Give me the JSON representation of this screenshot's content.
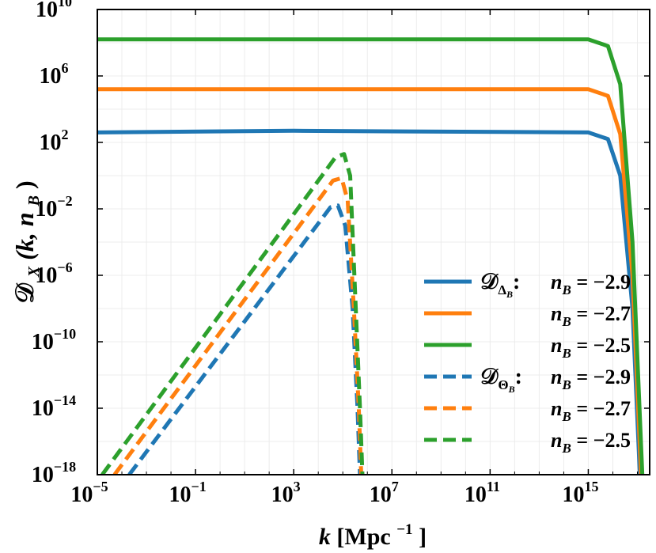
{
  "chart_data": {
    "type": "line",
    "title": "",
    "xlabel": {
      "var": "k",
      "unit": "[Mpc",
      "exp": "−1",
      "close": "]"
    },
    "ylabel": {
      "main": "𝒟",
      "sub": "X",
      "args": "(k, n",
      "argsub": "B",
      "close": ")"
    },
    "xscale": "log",
    "yscale": "log",
    "xlim_log10": [
      -5,
      17.5
    ],
    "ylim_log10": [
      -18,
      10
    ],
    "xticks": [
      {
        "log10": -5,
        "base": "10",
        "exp": "−5"
      },
      {
        "log10": -1,
        "base": "10",
        "exp": "−1"
      },
      {
        "log10": 3,
        "base": "10",
        "exp": "3"
      },
      {
        "log10": 7,
        "base": "10",
        "exp": "7"
      },
      {
        "log10": 11,
        "base": "10",
        "exp": "11"
      },
      {
        "log10": 15,
        "base": "10",
        "exp": "15"
      }
    ],
    "yticks": [
      {
        "log10": -18,
        "base": "10",
        "exp": "−18"
      },
      {
        "log10": -14,
        "base": "10",
        "exp": "−14"
      },
      {
        "log10": -10,
        "base": "10",
        "exp": "−10"
      },
      {
        "log10": -6,
        "base": "10",
        "exp": "−6"
      },
      {
        "log10": -2,
        "base": "10",
        "exp": "−2"
      },
      {
        "log10": 2,
        "base": "10",
        "exp": "2"
      },
      {
        "log10": 6,
        "base": "10",
        "exp": "6"
      },
      {
        "log10": 10,
        "base": "10",
        "exp": "10"
      }
    ],
    "grid": true,
    "legend_position": "right",
    "series": [
      {
        "name": "D_Delta_B n_B=-2.9",
        "group_label": "𝒟",
        "group_sub": "Δ",
        "group_subsub": "B",
        "label": "n",
        "label_sub": "B",
        "label_val": " = −2.9",
        "color": "#1f77b4",
        "dash": "solid",
        "points_log10": [
          [
            -5,
            2.6
          ],
          [
            3,
            2.7
          ],
          [
            15,
            2.6
          ],
          [
            15.8,
            2.2
          ],
          [
            16.3,
            0
          ],
          [
            16.8,
            -8
          ],
          [
            17.1,
            -18
          ]
        ]
      },
      {
        "name": "D_Delta_B n_B=-2.7",
        "label": "n",
        "label_sub": "B",
        "label_val": " = −2.7",
        "color": "#ff7f0e",
        "dash": "solid",
        "points_log10": [
          [
            -5,
            5.2
          ],
          [
            3,
            5.2
          ],
          [
            15,
            5.2
          ],
          [
            15.8,
            4.8
          ],
          [
            16.3,
            2.5
          ],
          [
            16.8,
            -6
          ],
          [
            17.15,
            -18
          ]
        ]
      },
      {
        "name": "D_Delta_B n_B=-2.5",
        "label": "n",
        "label_sub": "B",
        "label_val": " = −2.5",
        "color": "#2ca02c",
        "dash": "solid",
        "points_log10": [
          [
            -5,
            8.2
          ],
          [
            3,
            8.2
          ],
          [
            15,
            8.2
          ],
          [
            15.8,
            7.8
          ],
          [
            16.3,
            5.5
          ],
          [
            16.8,
            -4
          ],
          [
            17.2,
            -18
          ]
        ]
      },
      {
        "name": "D_Theta_B n_B=-2.9",
        "group_label": "𝒟",
        "group_sub": "Θ",
        "group_subsub": "B",
        "label": "n",
        "label_sub": "B",
        "label_val": " = −2.9",
        "color": "#1f77b4",
        "dash": "dashed",
        "points_log10": [
          [
            -3.7,
            -18
          ],
          [
            4.5,
            -1.9
          ],
          [
            4.8,
            -1.8
          ],
          [
            5.1,
            -3
          ],
          [
            5.4,
            -8
          ],
          [
            5.6,
            -14
          ],
          [
            5.7,
            -18
          ]
        ]
      },
      {
        "name": "D_Theta_B n_B=-2.7",
        "label": "n",
        "label_sub": "B",
        "label_val": " = −2.7",
        "color": "#ff7f0e",
        "dash": "dashed",
        "points_log10": [
          [
            -4.3,
            -18
          ],
          [
            4.6,
            -0.3
          ],
          [
            4.95,
            -0.15
          ],
          [
            5.2,
            -1.5
          ],
          [
            5.45,
            -8
          ],
          [
            5.65,
            -14
          ],
          [
            5.75,
            -18
          ]
        ]
      },
      {
        "name": "D_Theta_B n_B=-2.5",
        "label": "n",
        "label_sub": "B",
        "label_val": " = −2.5",
        "color": "#2ca02c",
        "dash": "dashed",
        "points_log10": [
          [
            -4.8,
            -18
          ],
          [
            4.7,
            1.1
          ],
          [
            5.05,
            1.3
          ],
          [
            5.3,
            0
          ],
          [
            5.5,
            -7
          ],
          [
            5.7,
            -14
          ],
          [
            5.8,
            -18
          ]
        ]
      }
    ]
  }
}
